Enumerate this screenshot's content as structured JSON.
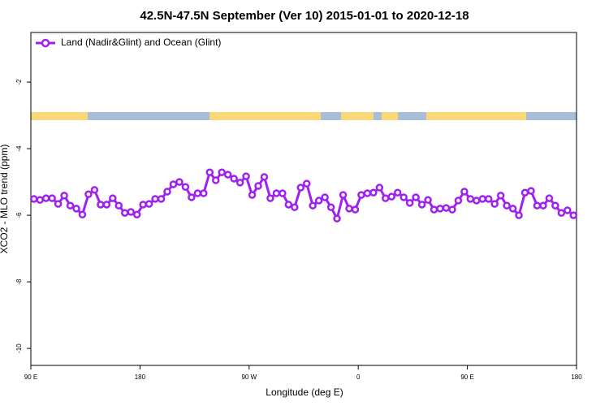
{
  "chart_data": {
    "type": "line",
    "title": "42.5N-47.5N September (Ver 10)   2015-01-01 to 2020-12-18",
    "x_label": "Longitude (deg E)",
    "y_label": "XCO2 - MLO trend (ppm)",
    "xlim": [
      90,
      540
    ],
    "xticks": [
      {
        "value": 90,
        "label": "90 E"
      },
      {
        "value": 180,
        "label": "180"
      },
      {
        "value": 270,
        "label": "90 W"
      },
      {
        "value": 360,
        "label": "0"
      },
      {
        "value": 450,
        "label": "90 E"
      },
      {
        "value": 540,
        "label": "180"
      }
    ],
    "ylim": [
      -10.51,
      -0.51
    ],
    "yticks": [
      -10,
      -8,
      -6,
      -4,
      -2
    ],
    "legend": "top-left",
    "x": [
      92.5,
      97.5,
      102.5,
      107.5,
      112.5,
      117.5,
      122.5,
      127.5,
      132.5,
      137.5,
      142.5,
      147.5,
      152.5,
      157.5,
      162.5,
      167.5,
      172.5,
      177.5,
      182.5,
      187.5,
      192.5,
      197.5,
      202.5,
      207.5,
      212.5,
      217.5,
      222.5,
      227.5,
      232.5,
      237.5,
      242.5,
      247.5,
      252.5,
      257.5,
      262.5,
      267.5,
      272.5,
      277.5,
      282.5,
      287.5,
      292.5,
      297.5,
      302.5,
      307.5,
      312.5,
      317.5,
      322.5,
      327.5,
      332.5,
      337.5,
      342.5,
      347.5,
      352.5,
      357.5,
      362.5,
      367.5,
      372.5,
      377.5,
      382.5,
      387.5,
      392.5,
      397.5,
      402.5,
      407.5,
      412.5,
      417.5,
      422.5,
      427.5,
      432.5,
      437.5,
      442.5,
      447.5,
      452.5,
      457.5,
      462.5,
      467.5,
      472.5,
      477.5,
      482.5,
      487.5,
      492.5,
      497.5,
      502.5,
      507.5,
      512.5,
      517.5,
      522.5,
      527.5,
      532.5,
      537.5
    ],
    "series": [
      {
        "name": "Land (Nadir&Glint) and Ocean (Glint)",
        "color": "#a020f0",
        "values": [
          -5.51,
          -5.54,
          -5.49,
          -5.49,
          -5.66,
          -5.41,
          -5.71,
          -5.8,
          -5.98,
          -5.37,
          -5.24,
          -5.68,
          -5.68,
          -5.49,
          -5.71,
          -5.93,
          -5.9,
          -5.98,
          -5.68,
          -5.66,
          -5.51,
          -5.51,
          -5.29,
          -5.07,
          -5.0,
          -5.15,
          -5.46,
          -5.34,
          -5.34,
          -4.71,
          -4.95,
          -4.71,
          -4.78,
          -4.9,
          -5.02,
          -4.83,
          -5.39,
          -5.12,
          -4.85,
          -5.49,
          -5.34,
          -5.34,
          -5.68,
          -5.76,
          -5.17,
          -5.05,
          -5.71,
          -5.56,
          -5.46,
          -5.76,
          -6.1,
          -5.39,
          -5.8,
          -5.83,
          -5.39,
          -5.34,
          -5.32,
          -5.17,
          -5.49,
          -5.44,
          -5.32,
          -5.46,
          -5.63,
          -5.46,
          -5.68,
          -5.54,
          -5.83,
          -5.8,
          -5.78,
          -5.83,
          -5.56,
          -5.29,
          -5.51,
          -5.56,
          -5.51,
          -5.51,
          -5.66,
          -5.41,
          -5.71,
          -5.8,
          -6.0,
          -5.32,
          -5.27,
          -5.71,
          -5.71,
          -5.49,
          -5.71,
          -5.93,
          -5.85,
          -6.0
        ]
      }
    ]
  }
}
